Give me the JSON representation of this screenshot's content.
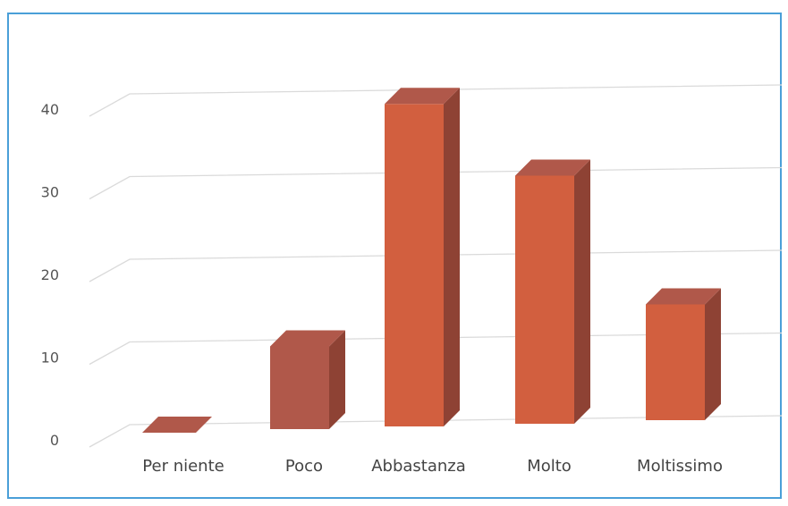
{
  "chart_data": {
    "type": "bar",
    "style": "3d-column",
    "categories": [
      "Per niente",
      "Poco",
      "Abbastanza",
      "Molto",
      "Moltissimo"
    ],
    "values": [
      0,
      10,
      39,
      30,
      14
    ],
    "yticks": [
      "0",
      "10",
      "20",
      "30",
      "40"
    ],
    "ylim": [
      0,
      40
    ],
    "grid": true,
    "legend": "none",
    "colors": {
      "front": "#d25f3f",
      "side": "#8e4234",
      "top": "#b0584a",
      "border": "#4a9fd8",
      "grid": "#dadada"
    }
  }
}
